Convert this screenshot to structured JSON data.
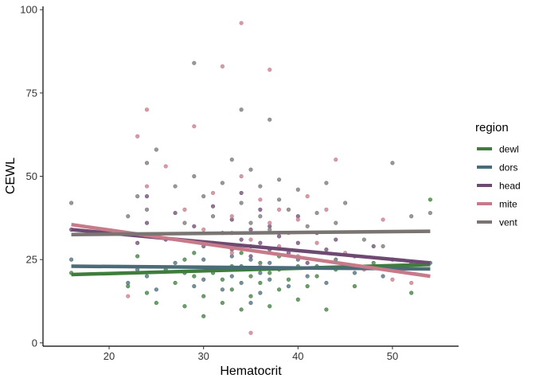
{
  "chart_data": {
    "type": "scatter",
    "title": "",
    "xlabel": "Hematocrit",
    "ylabel": "CEWL",
    "xlim": [
      13,
      57
    ],
    "ylim": [
      -1,
      101
    ],
    "x_ticks": [
      20,
      30,
      40,
      50
    ],
    "y_ticks": [
      0,
      25,
      50,
      75,
      100
    ],
    "grid": false,
    "legend_title": "region",
    "legend_position": "right",
    "series": [
      {
        "name": "dewl",
        "color": "#3e7d3c",
        "fit": [
          [
            16,
            20.5
          ],
          [
            54,
            23.5
          ]
        ],
        "points": [
          [
            16,
            21
          ],
          [
            22,
            17
          ],
          [
            23,
            26
          ],
          [
            24,
            15
          ],
          [
            25,
            12
          ],
          [
            26,
            22
          ],
          [
            27,
            18
          ],
          [
            28,
            11
          ],
          [
            28,
            25
          ],
          [
            29,
            27
          ],
          [
            29,
            20
          ],
          [
            30,
            14
          ],
          [
            30,
            8
          ],
          [
            31,
            21
          ],
          [
            31,
            30
          ],
          [
            32,
            19
          ],
          [
            32,
            12
          ],
          [
            33,
            23
          ],
          [
            33,
            16
          ],
          [
            34,
            10
          ],
          [
            34,
            27
          ],
          [
            35,
            20
          ],
          [
            35,
            14
          ],
          [
            35,
            29
          ],
          [
            36,
            18
          ],
          [
            36,
            24
          ],
          [
            37,
            11
          ],
          [
            37,
            21
          ],
          [
            38,
            16
          ],
          [
            38,
            26
          ],
          [
            39,
            19
          ],
          [
            40,
            13
          ],
          [
            40,
            23
          ],
          [
            41,
            17
          ],
          [
            42,
            20
          ],
          [
            43,
            10
          ],
          [
            44,
            22
          ],
          [
            46,
            17
          ],
          [
            48,
            24
          ],
          [
            50,
            22
          ],
          [
            52,
            15
          ],
          [
            54,
            43
          ]
        ]
      },
      {
        "name": "dors",
        "color": "#4a6b78",
        "fit": [
          [
            16,
            23
          ],
          [
            54,
            22.2
          ]
        ],
        "points": [
          [
            16,
            25
          ],
          [
            22,
            18
          ],
          [
            23,
            22
          ],
          [
            24,
            20
          ],
          [
            25,
            16
          ],
          [
            27,
            24
          ],
          [
            28,
            21
          ],
          [
            29,
            17
          ],
          [
            30,
            25
          ],
          [
            30,
            19
          ],
          [
            31,
            22
          ],
          [
            32,
            16
          ],
          [
            33,
            26
          ],
          [
            33,
            20
          ],
          [
            34,
            18
          ],
          [
            34,
            23
          ],
          [
            35,
            12
          ],
          [
            35,
            25
          ],
          [
            36,
            21
          ],
          [
            36,
            15
          ],
          [
            37,
            24
          ],
          [
            37,
            19
          ],
          [
            38,
            22
          ],
          [
            39,
            17
          ],
          [
            40,
            25
          ],
          [
            41,
            20
          ],
          [
            42,
            23
          ],
          [
            43,
            18
          ],
          [
            44,
            25
          ],
          [
            46,
            21
          ],
          [
            49,
            20
          ],
          [
            52,
            24
          ],
          [
            54,
            24
          ]
        ]
      },
      {
        "name": "head",
        "color": "#6e4a72",
        "fit": [
          [
            16,
            34
          ],
          [
            54,
            24
          ]
        ],
        "points": [
          [
            16,
            34
          ],
          [
            23,
            30
          ],
          [
            24,
            36
          ],
          [
            24,
            44
          ],
          [
            26,
            31
          ],
          [
            27,
            39
          ],
          [
            29,
            35
          ],
          [
            30,
            29
          ],
          [
            31,
            41
          ],
          [
            32,
            33
          ],
          [
            33,
            28
          ],
          [
            33,
            37
          ],
          [
            34,
            31
          ],
          [
            34,
            45
          ],
          [
            35,
            26
          ],
          [
            35,
            34
          ],
          [
            36,
            30
          ],
          [
            36,
            40
          ],
          [
            37,
            28
          ],
          [
            37,
            35
          ],
          [
            38,
            32
          ],
          [
            39,
            27
          ],
          [
            40,
            38
          ],
          [
            40,
            30
          ],
          [
            41,
            24
          ],
          [
            42,
            33
          ],
          [
            43,
            28
          ],
          [
            44,
            31
          ],
          [
            46,
            26
          ],
          [
            48,
            29
          ],
          [
            50,
            25
          ],
          [
            53,
            24
          ]
        ]
      },
      {
        "name": "mite",
        "color": "#c77a8a",
        "fit": [
          [
            16,
            35.5
          ],
          [
            54,
            20
          ]
        ],
        "points": [
          [
            22,
            14
          ],
          [
            23,
            62
          ],
          [
            24,
            70
          ],
          [
            24,
            47
          ],
          [
            26,
            53
          ],
          [
            28,
            40
          ],
          [
            29,
            65
          ],
          [
            30,
            34
          ],
          [
            31,
            45
          ],
          [
            32,
            83
          ],
          [
            33,
            38
          ],
          [
            33,
            27
          ],
          [
            34,
            50
          ],
          [
            34,
            96
          ],
          [
            35,
            3
          ],
          [
            35,
            31
          ],
          [
            36,
            43
          ],
          [
            36,
            23
          ],
          [
            37,
            82
          ],
          [
            37,
            36
          ],
          [
            38,
            40
          ],
          [
            38,
            29
          ],
          [
            39,
            33
          ],
          [
            40,
            37
          ],
          [
            40,
            26
          ],
          [
            41,
            44
          ],
          [
            42,
            30
          ],
          [
            43,
            40
          ],
          [
            44,
            55
          ],
          [
            45,
            27
          ],
          [
            47,
            22
          ],
          [
            49,
            37
          ],
          [
            50,
            19
          ],
          [
            52,
            18
          ]
        ]
      },
      {
        "name": "vent",
        "color": "#7a7473",
        "fit": [
          [
            16,
            32.5
          ],
          [
            54,
            33.5
          ]
        ],
        "points": [
          [
            16,
            42
          ],
          [
            22,
            38
          ],
          [
            23,
            44
          ],
          [
            24,
            54
          ],
          [
            24,
            40
          ],
          [
            25,
            58
          ],
          [
            27,
            47
          ],
          [
            28,
            36
          ],
          [
            29,
            50
          ],
          [
            29,
            84
          ],
          [
            30,
            44
          ],
          [
            31,
            38
          ],
          [
            32,
            48
          ],
          [
            33,
            55
          ],
          [
            33,
            33
          ],
          [
            34,
            70
          ],
          [
            34,
            42
          ],
          [
            35,
            36
          ],
          [
            35,
            52
          ],
          [
            36,
            38
          ],
          [
            36,
            47
          ],
          [
            37,
            67
          ],
          [
            37,
            34
          ],
          [
            38,
            43
          ],
          [
            38,
            49
          ],
          [
            39,
            40
          ],
          [
            40,
            46
          ],
          [
            41,
            35
          ],
          [
            42,
            39
          ],
          [
            43,
            48
          ],
          [
            44,
            36
          ],
          [
            45,
            42
          ],
          [
            47,
            31
          ],
          [
            49,
            29
          ],
          [
            50,
            54
          ],
          [
            52,
            38
          ],
          [
            54,
            39
          ]
        ]
      }
    ]
  }
}
